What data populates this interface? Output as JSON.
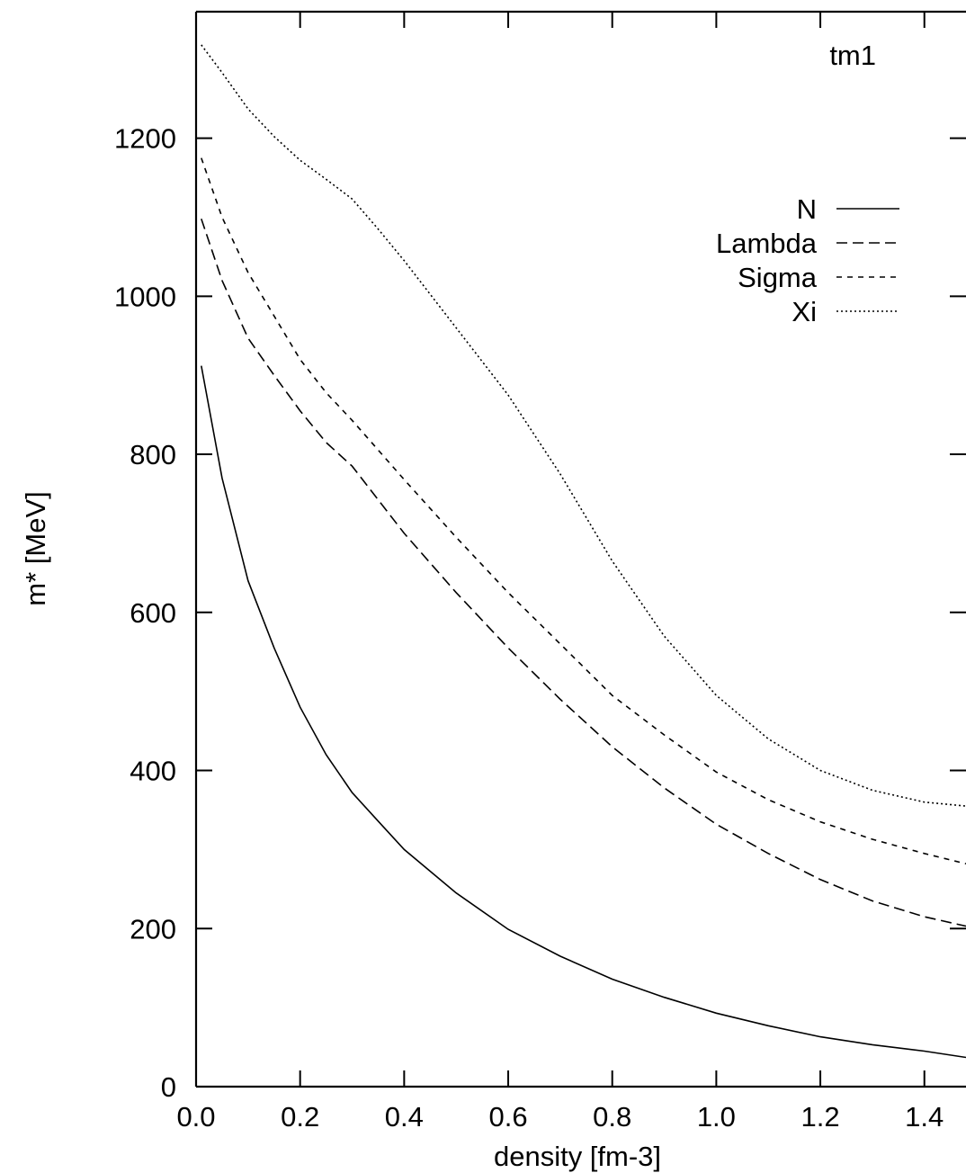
{
  "chart_data": {
    "type": "line",
    "title": "tm1",
    "xlabel": "density [fm-3]",
    "ylabel": "m* [MeV]",
    "xlim": [
      0.0,
      1.48
    ],
    "ylim": [
      0,
      1360
    ],
    "x_ticks": [
      0.0,
      0.2,
      0.4,
      0.6,
      0.8,
      1.0,
      1.2,
      1.4
    ],
    "x_tick_labels": [
      "0.0",
      "0.2",
      "0.4",
      "0.6",
      "0.8",
      "1.0",
      "1.2",
      "1.4"
    ],
    "y_ticks": [
      0,
      200,
      400,
      600,
      800,
      1000,
      1200
    ],
    "y_tick_labels": [
      "0",
      "200",
      "400",
      "600",
      "800",
      "1000",
      "1200"
    ],
    "grid": false,
    "legend_position": "top-right",
    "series": [
      {
        "name": "N",
        "dash": "solid",
        "x": [
          0.01,
          0.05,
          0.1,
          0.15,
          0.2,
          0.25,
          0.3,
          0.35,
          0.4,
          0.5,
          0.6,
          0.7,
          0.8,
          0.9,
          1.0,
          1.1,
          1.2,
          1.3,
          1.4,
          1.48
        ],
        "y": [
          912,
          770,
          640,
          555,
          480,
          420,
          372,
          336,
          300,
          245,
          199,
          165,
          136,
          113,
          93,
          77,
          63,
          53,
          45,
          37
        ]
      },
      {
        "name": "Lambda",
        "dash": "long-dash",
        "x": [
          0.01,
          0.05,
          0.1,
          0.15,
          0.2,
          0.25,
          0.3,
          0.4,
          0.5,
          0.6,
          0.7,
          0.8,
          0.9,
          1.0,
          1.1,
          1.2,
          1.3,
          1.4,
          1.48
        ],
        "y": [
          1098,
          1020,
          947,
          900,
          855,
          815,
          785,
          700,
          625,
          555,
          490,
          430,
          378,
          332,
          295,
          262,
          235,
          215,
          203
        ]
      },
      {
        "name": "Sigma",
        "dash": "short-dash",
        "x": [
          0.01,
          0.05,
          0.1,
          0.15,
          0.2,
          0.25,
          0.3,
          0.4,
          0.5,
          0.6,
          0.7,
          0.8,
          0.9,
          1.0,
          1.1,
          1.2,
          1.3,
          1.4,
          1.48
        ],
        "y": [
          1175,
          1100,
          1030,
          975,
          920,
          878,
          843,
          768,
          695,
          625,
          560,
          495,
          445,
          398,
          363,
          335,
          313,
          295,
          282
        ]
      },
      {
        "name": "Xi",
        "dash": "dotted",
        "x": [
          0.01,
          0.05,
          0.1,
          0.15,
          0.2,
          0.25,
          0.3,
          0.35,
          0.4,
          0.5,
          0.6,
          0.7,
          0.8,
          0.9,
          1.0,
          1.1,
          1.2,
          1.3,
          1.4,
          1.48
        ],
        "y": [
          1318,
          1283,
          1237,
          1202,
          1172,
          1148,
          1123,
          1085,
          1045,
          960,
          875,
          775,
          665,
          570,
          495,
          440,
          400,
          375,
          360,
          355
        ]
      }
    ]
  }
}
